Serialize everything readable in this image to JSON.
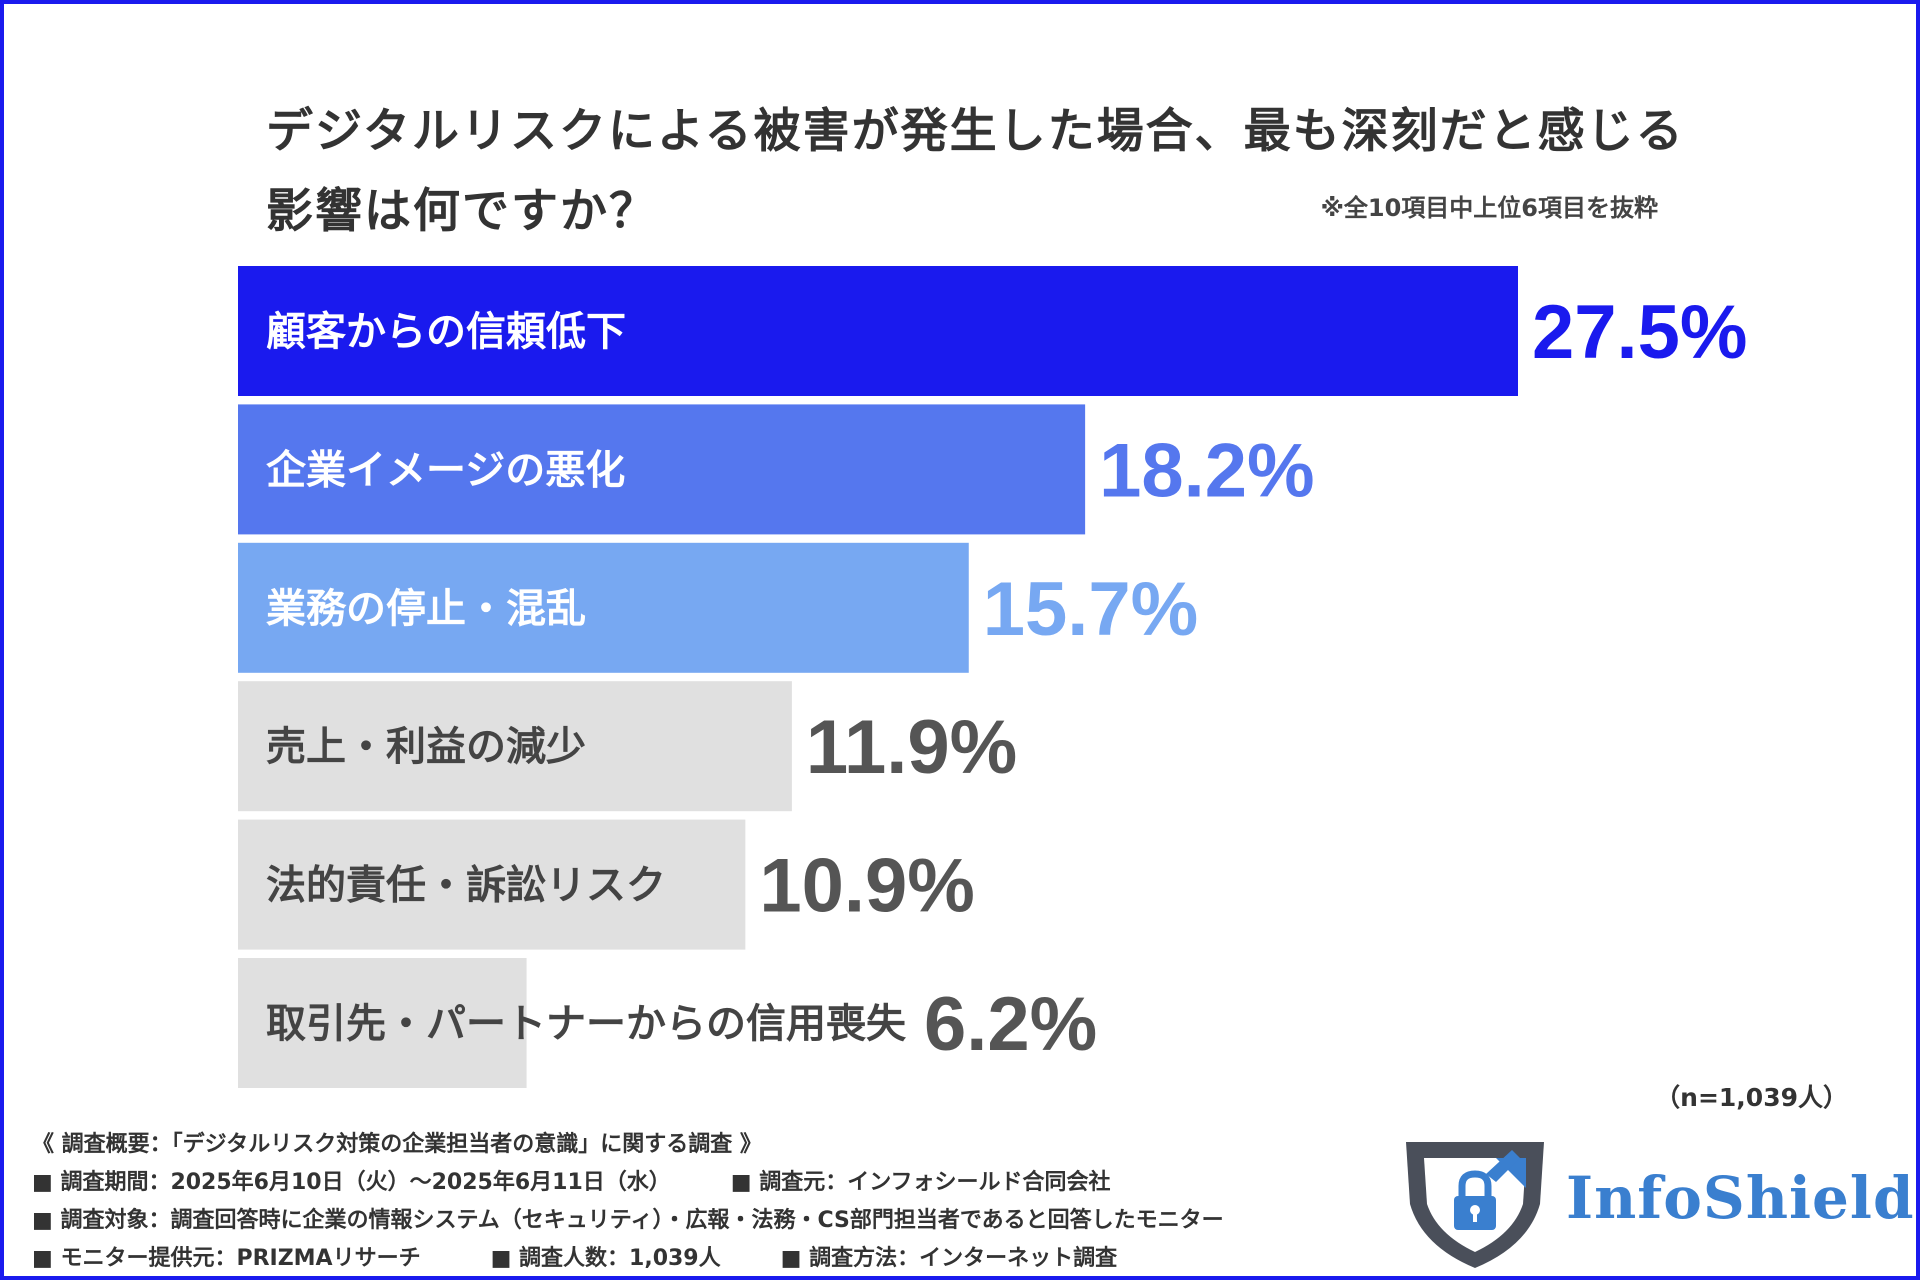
{
  "title": "デジタルリスクによる被害が発生した場合、最も深刻だと感じる影響は何ですか？",
  "note": "※全10項目中上位6項目を抜粋",
  "chart_data": {
    "type": "bar",
    "orientation": "horizontal",
    "categories": [
      "顧客からの信頼低下",
      "企業イメージの悪化",
      "業務の停止・混乱",
      "売上・利益の減少",
      "法的責任・訴訟リスク",
      "取引先・パートナーからの信用喪失"
    ],
    "values": [
      27.5,
      18.2,
      15.7,
      11.9,
      10.9,
      6.2
    ],
    "value_labels": [
      "27.5%",
      "18.2%",
      "15.7%",
      "11.9%",
      "10.9%",
      "6.2%"
    ],
    "bar_colors": [
      "#1a1aee",
      "#5577ee",
      "#77a8f2",
      "#e0e0e0",
      "#e0e0e0",
      "#e0e0e0"
    ],
    "label_colors": [
      "#ffffff",
      "#ffffff",
      "#ffffff",
      "#444444",
      "#444444",
      "#444444"
    ],
    "value_colors": [
      "#1a1aee",
      "#5577ee",
      "#77a8f2",
      "#555555",
      "#555555",
      "#555555"
    ],
    "unit": "%"
  },
  "sample": "（n=1,039人）",
  "survey": {
    "heading": "《 調査概要：「デジタルリスク対策の企業担当者の意識」に関する調査 》",
    "period": "■ 調査期間：2025年6月10日（火）～2025年6月11日（水）",
    "source": "■ 調査元：インフォシールド合同会社",
    "target": "■ 調査対象：調査回答時に企業の情報システム（セキュリティ）・広報・法務・CS部門担当者であると回答したモニター",
    "provider": "■ モニター提供元：PRIZMAリサーチ",
    "count": "■ 調査人数：1,039人",
    "method": "■ 調査方法：インターネット調査"
  },
  "logo": {
    "text": "InfoShield",
    "shield_color": "#4a4f5a",
    "accent_color": "#3a7fcf"
  }
}
